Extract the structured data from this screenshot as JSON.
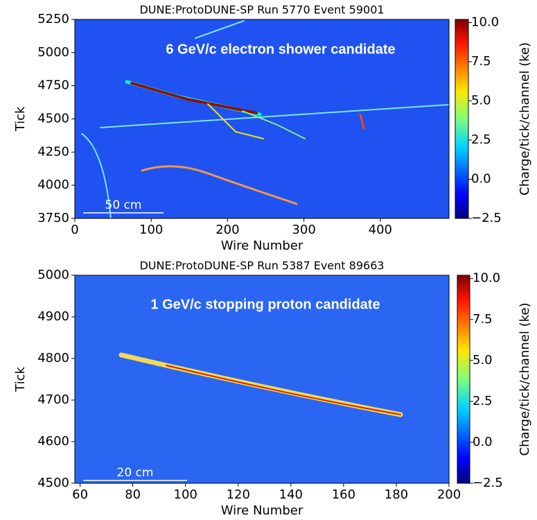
{
  "chart_data": [
    {
      "type": "image",
      "title": "DUNE:ProtoDUNE-SP Run 5770 Event 59001",
      "xlabel": "Wire Number",
      "ylabel": "Tick",
      "xlim": [
        0,
        490
      ],
      "xticks": [
        0,
        100,
        200,
        300,
        400
      ],
      "ylim": [
        3750,
        5250
      ],
      "yticks": [
        3750,
        4000,
        4250,
        4500,
        4750,
        5000,
        5250
      ],
      "annotation": "6 GeV/c electron shower candidate",
      "scale_bar": "50 cm",
      "background": "#1f52f0",
      "colorbar": {
        "label": "Charge/tick/channel (ke)",
        "lim": [
          -2.5,
          10.2
        ],
        "ticks": [
          {
            "value": -2.5,
            "label": "−2.5"
          },
          {
            "value": 0,
            "label": "0.0"
          },
          {
            "value": 2.5,
            "label": "2.5"
          },
          {
            "value": 5,
            "label": "5.0"
          },
          {
            "value": 7.5,
            "label": "7.5"
          },
          {
            "value": 10,
            "label": "10.0"
          }
        ]
      }
    },
    {
      "type": "image",
      "title": "DUNE:ProtoDUNE-SP Run 5387 Event 89663",
      "xlabel": "Wire Number",
      "ylabel": "Tick",
      "xlim": [
        58,
        200
      ],
      "xticks": [
        60,
        80,
        100,
        120,
        140,
        160,
        180,
        200
      ],
      "ylim": [
        4500,
        5000
      ],
      "yticks": [
        4500,
        4600,
        4700,
        4800,
        4900,
        5000
      ],
      "annotation": "1 GeV/c stopping proton candidate",
      "scale_bar": "20 cm",
      "background": "#2a66f2",
      "colorbar": {
        "label": "Charge/tick/channel (ke)",
        "lim": [
          -2.5,
          10.2
        ],
        "ticks": [
          {
            "value": -2.5,
            "label": "−2.5"
          },
          {
            "value": 0,
            "label": "0.0"
          },
          {
            "value": 2.5,
            "label": "2.5"
          },
          {
            "value": 5,
            "label": "5.0"
          },
          {
            "value": 7.5,
            "label": "7.5"
          },
          {
            "value": 10,
            "label": "10.0"
          }
        ]
      }
    }
  ]
}
